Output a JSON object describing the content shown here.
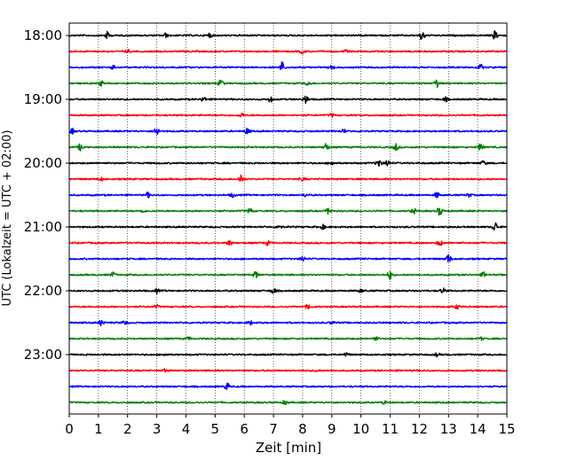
{
  "chart_data": {
    "type": "line",
    "title": "",
    "xlabel": "Zeit  [min]",
    "ylabel": "UTC (Lokalzeit = UTC + 02:00)",
    "xlim": [
      0,
      15
    ],
    "x_ticks": [
      "0",
      "1",
      "2",
      "3",
      "4",
      "5",
      "6",
      "7",
      "8",
      "9",
      "10",
      "11",
      "12",
      "13",
      "14",
      "15"
    ],
    "y_ticks": [
      {
        "label": "18:00",
        "trace_index": 0
      },
      {
        "label": "19:00",
        "trace_index": 4
      },
      {
        "label": "20:00",
        "trace_index": 8
      },
      {
        "label": "21:00",
        "trace_index": 12
      },
      {
        "label": "22:00",
        "trace_index": 16
      },
      {
        "label": "23:00",
        "trace_index": 20
      }
    ],
    "grid": "vertical dotted",
    "trace_colors": [
      "#000000",
      "#ff0000",
      "#0000ff",
      "#008000"
    ],
    "trace_count": 24,
    "traces": [
      {
        "start": "18:00",
        "color": "#000000",
        "events": [
          {
            "t": 1.3,
            "a": 0.7
          },
          {
            "t": 3.3,
            "a": 0.4
          },
          {
            "t": 4.8,
            "a": 0.5
          },
          {
            "t": 12.1,
            "a": 1.2
          },
          {
            "t": 14.6,
            "a": 0.9
          }
        ]
      },
      {
        "start": "18:15",
        "color": "#ff0000",
        "events": [
          {
            "t": 2.0,
            "a": 0.3
          },
          {
            "t": 8.0,
            "a": 0.4
          },
          {
            "t": 9.5,
            "a": 0.3
          }
        ]
      },
      {
        "start": "18:30",
        "color": "#0000ff",
        "events": [
          {
            "t": 1.5,
            "a": 0.5
          },
          {
            "t": 7.3,
            "a": 1.1
          },
          {
            "t": 9.0,
            "a": 0.4
          },
          {
            "t": 14.1,
            "a": 0.6
          }
        ]
      },
      {
        "start": "18:45",
        "color": "#008000",
        "events": [
          {
            "t": 1.1,
            "a": 0.5
          },
          {
            "t": 5.2,
            "a": 0.8
          },
          {
            "t": 8.2,
            "a": 0.4
          },
          {
            "t": 12.6,
            "a": 0.8
          }
        ]
      },
      {
        "start": "19:00",
        "color": "#000000",
        "events": [
          {
            "t": 4.6,
            "a": 0.5
          },
          {
            "t": 6.9,
            "a": 0.6
          },
          {
            "t": 8.1,
            "a": 0.9
          },
          {
            "t": 12.9,
            "a": 0.4
          }
        ]
      },
      {
        "start": "19:15",
        "color": "#ff0000",
        "events": [
          {
            "t": 5.9,
            "a": 0.4
          },
          {
            "t": 9.0,
            "a": 0.3
          }
        ]
      },
      {
        "start": "19:30",
        "color": "#0000ff",
        "events": [
          {
            "t": 0.1,
            "a": 0.5
          },
          {
            "t": 3.0,
            "a": 0.9
          },
          {
            "t": 6.1,
            "a": 0.6
          },
          {
            "t": 9.4,
            "a": 0.4
          }
        ]
      },
      {
        "start": "19:45",
        "color": "#008000",
        "events": [
          {
            "t": 0.4,
            "a": 0.8
          },
          {
            "t": 8.8,
            "a": 0.8
          },
          {
            "t": 11.2,
            "a": 0.7
          },
          {
            "t": 14.1,
            "a": 0.7
          }
        ]
      },
      {
        "start": "20:00",
        "color": "#000000",
        "events": [
          {
            "t": 9.0,
            "a": 0.4
          },
          {
            "t": 10.6,
            "a": 0.9
          },
          {
            "t": 10.9,
            "a": 0.7
          },
          {
            "t": 14.2,
            "a": 0.5
          }
        ]
      },
      {
        "start": "20:15",
        "color": "#ff0000",
        "events": [
          {
            "t": 1.1,
            "a": 0.3
          },
          {
            "t": 5.9,
            "a": 1.0
          },
          {
            "t": 8.0,
            "a": 0.3
          }
        ]
      },
      {
        "start": "20:30",
        "color": "#0000ff",
        "events": [
          {
            "t": 2.7,
            "a": 0.5
          },
          {
            "t": 5.6,
            "a": 0.4
          },
          {
            "t": 8.1,
            "a": 0.3
          },
          {
            "t": 12.6,
            "a": 0.6
          },
          {
            "t": 13.7,
            "a": 0.4
          }
        ]
      },
      {
        "start": "20:45",
        "color": "#008000",
        "events": [
          {
            "t": 2.5,
            "a": 0.3
          },
          {
            "t": 6.2,
            "a": 0.5
          },
          {
            "t": 8.9,
            "a": 0.7
          },
          {
            "t": 11.8,
            "a": 0.5
          },
          {
            "t": 12.7,
            "a": 0.9
          }
        ]
      },
      {
        "start": "21:00",
        "color": "#000000",
        "events": [
          {
            "t": 7.2,
            "a": 0.5
          },
          {
            "t": 8.7,
            "a": 0.4
          },
          {
            "t": 14.6,
            "a": 1.0
          }
        ]
      },
      {
        "start": "21:15",
        "color": "#ff0000",
        "events": [
          {
            "t": 5.5,
            "a": 0.5
          },
          {
            "t": 6.8,
            "a": 0.4
          },
          {
            "t": 12.7,
            "a": 0.6
          }
        ]
      },
      {
        "start": "21:30",
        "color": "#0000ff",
        "events": [
          {
            "t": 8.0,
            "a": 0.6
          },
          {
            "t": 13.0,
            "a": 0.9
          }
        ]
      },
      {
        "start": "21:45",
        "color": "#008000",
        "events": [
          {
            "t": 1.5,
            "a": 0.5
          },
          {
            "t": 6.4,
            "a": 0.7
          },
          {
            "t": 11.0,
            "a": 0.9
          },
          {
            "t": 14.2,
            "a": 0.5
          }
        ]
      },
      {
        "start": "22:00",
        "color": "#000000",
        "events": [
          {
            "t": 3.0,
            "a": 0.4
          },
          {
            "t": 7.0,
            "a": 0.6
          },
          {
            "t": 10.0,
            "a": 0.3
          },
          {
            "t": 12.8,
            "a": 0.5
          }
        ]
      },
      {
        "start": "22:15",
        "color": "#ff0000",
        "events": [
          {
            "t": 3.0,
            "a": 0.3
          },
          {
            "t": 8.2,
            "a": 0.5
          },
          {
            "t": 13.3,
            "a": 0.4
          }
        ]
      },
      {
        "start": "22:30",
        "color": "#0000ff",
        "events": [
          {
            "t": 1.1,
            "a": 0.6
          },
          {
            "t": 1.9,
            "a": 0.4
          },
          {
            "t": 6.2,
            "a": 0.4
          },
          {
            "t": 9.0,
            "a": 0.3
          }
        ]
      },
      {
        "start": "22:45",
        "color": "#008000",
        "events": [
          {
            "t": 4.1,
            "a": 0.3
          },
          {
            "t": 10.5,
            "a": 0.4
          },
          {
            "t": 14.1,
            "a": 0.3
          }
        ]
      },
      {
        "start": "23:00",
        "color": "#000000",
        "events": [
          {
            "t": 3.3,
            "a": 0.2
          },
          {
            "t": 9.5,
            "a": 0.4
          },
          {
            "t": 12.6,
            "a": 0.3
          }
        ]
      },
      {
        "start": "23:15",
        "color": "#ff0000",
        "events": [
          {
            "t": 3.3,
            "a": 0.3
          },
          {
            "t": 8.5,
            "a": 0.2
          }
        ]
      },
      {
        "start": "23:30",
        "color": "#0000ff",
        "events": [
          {
            "t": 5.4,
            "a": 0.7
          }
        ]
      },
      {
        "start": "23:45",
        "color": "#008000",
        "events": [
          {
            "t": 7.4,
            "a": 0.4
          },
          {
            "t": 10.8,
            "a": 0.3
          }
        ]
      }
    ]
  }
}
